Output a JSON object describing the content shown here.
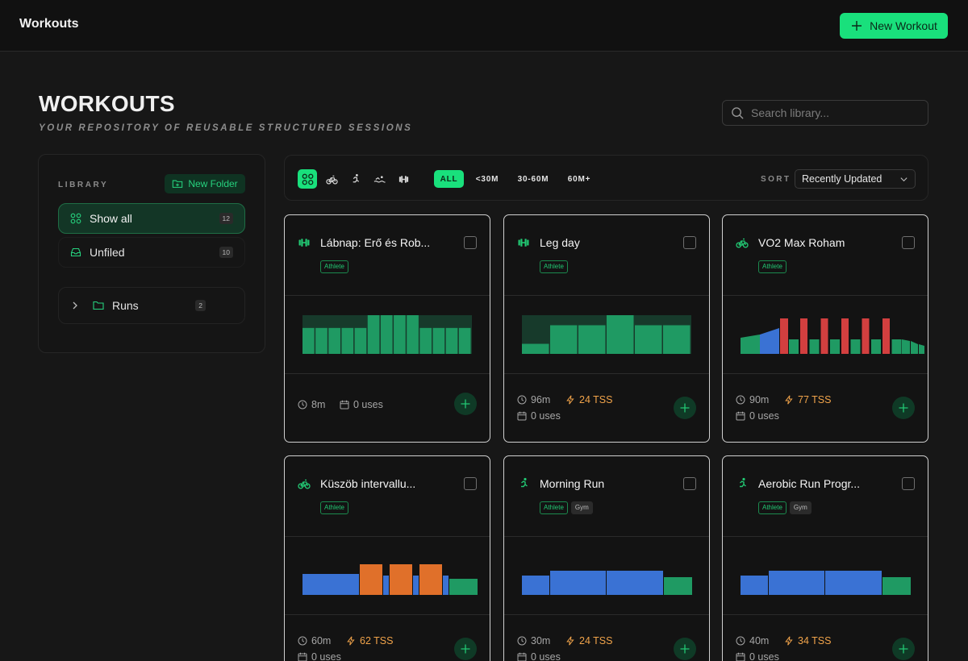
{
  "header": {
    "app_title": "Workouts",
    "new_workout_label": "New Workout"
  },
  "page": {
    "title": "WORKOUTS",
    "subtitle": "YOUR REPOSITORY OF REUSABLE STRUCTURED SESSIONS"
  },
  "search": {
    "placeholder": "Search library...",
    "value": ""
  },
  "sidebar": {
    "label": "LIBRARY",
    "new_folder_label": "New Folder",
    "items": [
      {
        "label": "Show all",
        "count": "12",
        "icon": "grid-icon",
        "active": true
      },
      {
        "label": "Unfiled",
        "count": "10",
        "icon": "inbox-icon"
      },
      {
        "label": "Runs",
        "count": "2",
        "icon": "folder-icon"
      }
    ]
  },
  "filters": {
    "types": [
      "all-types-icon",
      "bike-icon",
      "run-icon",
      "swim-icon",
      "strength-icon"
    ],
    "durations": [
      "ALL",
      "<30M",
      "30-60M",
      "60M+"
    ],
    "active_duration": "ALL",
    "sort_label": "SORT",
    "sort_value": "Recently Updated"
  },
  "colors": {
    "accent": "#19e07c",
    "tss": "#f0a34a",
    "zone_green": "#1f9a63",
    "zone_blue": "#3a72d4",
    "zone_red": "#d23f3f",
    "zone_orange": "#e0702a"
  },
  "cards": [
    {
      "title": "Lábnap: Erő és Rob...",
      "icon": "strength-icon",
      "tags": [
        "Athlete"
      ],
      "duration": "8m",
      "tss": "",
      "uses": "0 uses",
      "chart": {
        "type": "strength",
        "bars": [
          0.67,
          0.67,
          0.67,
          0.67,
          0.67,
          1.0,
          1.0,
          1.0,
          1.0,
          0.67,
          0.67,
          0.67,
          0.67
        ]
      }
    },
    {
      "title": "Leg day",
      "icon": "strength-icon",
      "tags": [
        "Athlete"
      ],
      "duration": "96m",
      "tss": "24 TSS",
      "uses": "0 uses",
      "chart": {
        "type": "strength",
        "bars": [
          0.26,
          0.74,
          0.74,
          1.0,
          0.74,
          0.74
        ]
      }
    },
    {
      "title": "VO2 Max Roham",
      "icon": "bike-icon",
      "tags": [
        "Athlete"
      ],
      "duration": "90m",
      "tss": "77 TSS",
      "uses": "0 uses",
      "chart": {
        "type": "intervals"
      }
    },
    {
      "title": "Küszöb intervallu...",
      "icon": "bike-icon",
      "tags": [
        "Athlete"
      ],
      "duration": "60m",
      "tss": "62 TSS",
      "uses": "0 uses",
      "chart": {
        "type": "threshold"
      }
    },
    {
      "title": "Morning Run",
      "icon": "run-icon",
      "tags": [
        "Athlete",
        "Gym"
      ],
      "duration": "30m",
      "tss": "24 TSS",
      "uses": "0 uses",
      "chart": {
        "type": "steady"
      }
    },
    {
      "title": "Aerobic Run Progr...",
      "icon": "run-icon",
      "tags": [
        "Athlete",
        "Gym"
      ],
      "duration": "40m",
      "tss": "34 TSS",
      "uses": "0 uses",
      "chart": {
        "type": "steady"
      }
    }
  ]
}
